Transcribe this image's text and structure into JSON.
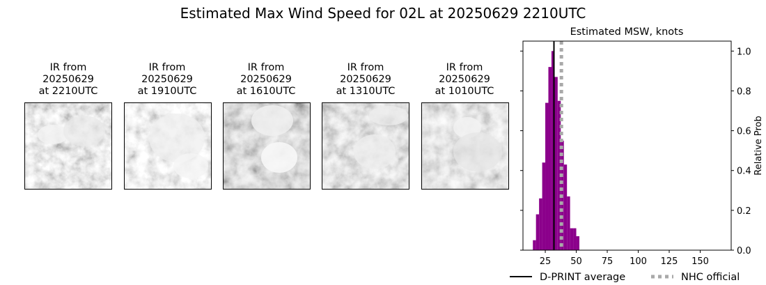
{
  "title": "Estimated Max Wind Speed for 02L at 20250629 2210UTC",
  "ir_panels": [
    {
      "line1": "IR from",
      "line2": "20250629",
      "line3": "at 2210UTC",
      "image_icon": "ir-satellite-image"
    },
    {
      "line1": "IR from",
      "line2": "20250629",
      "line3": "at 1910UTC",
      "image_icon": "ir-satellite-image"
    },
    {
      "line1": "IR from",
      "line2": "20250629",
      "line3": "at 1610UTC",
      "image_icon": "ir-satellite-image"
    },
    {
      "line1": "IR from",
      "line2": "20250629",
      "line3": "at 1310UTC",
      "image_icon": "ir-satellite-image"
    },
    {
      "line1": "IR from",
      "line2": "20250629",
      "line3": "at 1010UTC",
      "image_icon": "ir-satellite-image"
    }
  ],
  "chart_data": {
    "type": "bar",
    "title": "Estimated MSW, knots",
    "xlabel": "",
    "ylabel": "Relative Prob",
    "xlim": [
      7,
      175
    ],
    "ylim": [
      0,
      1.05
    ],
    "xticks": [
      25,
      50,
      75,
      100,
      125,
      150
    ],
    "yticks": [
      "0.0",
      "0.2",
      "0.4",
      "0.6",
      "0.8",
      "1.0"
    ],
    "bin_width": 2.5,
    "bins": [
      {
        "x0": 15.0,
        "value": 0.05
      },
      {
        "x0": 17.5,
        "value": 0.18
      },
      {
        "x0": 20.0,
        "value": 0.26
      },
      {
        "x0": 22.5,
        "value": 0.44
      },
      {
        "x0": 25.0,
        "value": 0.74
      },
      {
        "x0": 27.5,
        "value": 0.92
      },
      {
        "x0": 30.0,
        "value": 1.0
      },
      {
        "x0": 32.5,
        "value": 0.87
      },
      {
        "x0": 35.0,
        "value": 0.75
      },
      {
        "x0": 37.5,
        "value": 0.55
      },
      {
        "x0": 40.0,
        "value": 0.43
      },
      {
        "x0": 42.5,
        "value": 0.27
      },
      {
        "x0": 45.0,
        "value": 0.11
      },
      {
        "x0": 47.5,
        "value": 0.11
      },
      {
        "x0": 50.0,
        "value": 0.07
      }
    ],
    "bar_color": "#8b008b",
    "dprint_average": 32,
    "nhc_official": 38,
    "legend": [
      {
        "label": "D-PRINT average",
        "style": "solid",
        "color": "#000000"
      },
      {
        "label": "NHC official",
        "style": "dotted",
        "color": "#a9a9a9"
      }
    ],
    "legend_position": "bottom",
    "grid": false
  }
}
